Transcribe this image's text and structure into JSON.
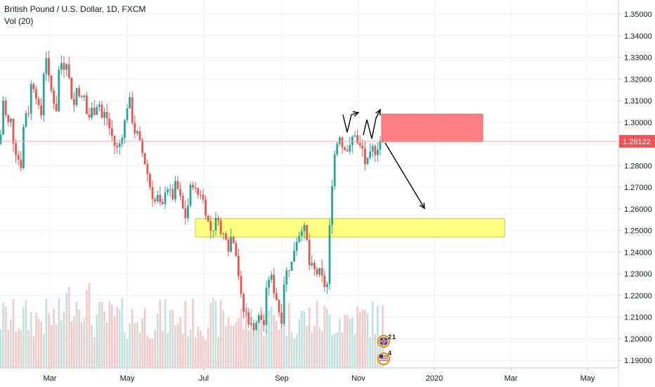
{
  "legend": {
    "symbol": "British Pound / U.S. Dollar, 1D, FXCM",
    "volume": "Vol (20)"
  },
  "colors": {
    "up": "#26a69a",
    "down": "#ef5350",
    "vol_up": "#bfe3dc",
    "vol_down": "#f6c9c8",
    "red_zone": "#ff7f83",
    "yellow_zone": "#ffff80",
    "price_line": "#f7a7a7",
    "price_badge": "#f0525a",
    "grid": "#eef0f4"
  },
  "chart_data": {
    "type": "candlestick",
    "title": "British Pound / U.S. Dollar, 1D, FXCM",
    "indicator": "Vol (20)",
    "y_ticks": [
      "1.35000",
      "1.34000",
      "1.33000",
      "1.32000",
      "1.31000",
      "1.30000",
      "1.29000",
      "1.28000",
      "1.27000",
      "1.26000",
      "1.25000",
      "1.24000",
      "1.23000",
      "1.22000",
      "1.21000",
      "1.20000",
      "1.19000"
    ],
    "ylim": [
      1.1865,
      1.3565
    ],
    "x_ticks": [
      "Mar",
      "May",
      "Jul",
      "Sep",
      "Nov",
      "2020",
      "Mar",
      "May"
    ],
    "current_price": "1.29122",
    "close_path": [
      [
        0,
        1.29
      ],
      [
        5,
        1.312
      ],
      [
        10,
        1.298
      ],
      [
        15,
        1.302
      ],
      [
        20,
        1.289
      ],
      [
        25,
        1.284
      ],
      [
        30,
        1.28
      ],
      [
        35,
        1.306
      ],
      [
        40,
        1.303
      ],
      [
        45,
        1.32
      ],
      [
        52,
        1.312
      ],
      [
        58,
        1.3
      ],
      [
        62,
        1.323
      ],
      [
        66,
        1.331
      ],
      [
        70,
        1.318
      ],
      [
        75,
        1.312
      ],
      [
        80,
        1.305
      ],
      [
        85,
        1.33
      ],
      [
        90,
        1.325
      ],
      [
        95,
        1.329
      ],
      [
        100,
        1.315
      ],
      [
        105,
        1.307
      ],
      [
        110,
        1.318
      ],
      [
        115,
        1.31
      ],
      [
        120,
        1.312
      ],
      [
        125,
        1.3
      ],
      [
        130,
        1.306
      ],
      [
        135,
        1.305
      ],
      [
        140,
        1.311
      ],
      [
        145,
        1.302
      ],
      [
        150,
        1.305
      ],
      [
        155,
        1.298
      ],
      [
        160,
        1.293
      ],
      [
        165,
        1.287
      ],
      [
        170,
        1.29
      ],
      [
        175,
        1.296
      ],
      [
        180,
        1.305
      ],
      [
        183,
        1.313
      ],
      [
        186,
        1.307
      ],
      [
        190,
        1.296
      ],
      [
        195,
        1.295
      ],
      [
        200,
        1.289
      ],
      [
        205,
        1.283
      ],
      [
        210,
        1.276
      ],
      [
        215,
        1.268
      ],
      [
        220,
        1.263
      ],
      [
        225,
        1.266
      ],
      [
        230,
        1.258
      ],
      [
        235,
        1.269
      ],
      [
        240,
        1.27
      ],
      [
        245,
        1.264
      ],
      [
        250,
        1.272
      ],
      [
        255,
        1.267
      ],
      [
        260,
        1.26
      ],
      [
        265,
        1.255
      ],
      [
        270,
        1.269
      ],
      [
        275,
        1.272
      ],
      [
        280,
        1.266
      ],
      [
        285,
        1.268
      ],
      [
        290,
        1.263
      ],
      [
        295,
        1.255
      ],
      [
        300,
        1.25
      ],
      [
        305,
        1.252
      ],
      [
        310,
        1.258
      ],
      [
        315,
        1.246
      ],
      [
        320,
        1.25
      ],
      [
        325,
        1.242
      ],
      [
        330,
        1.249
      ],
      [
        335,
        1.242
      ],
      [
        340,
        1.228
      ],
      [
        345,
        1.213
      ],
      [
        350,
        1.212
      ],
      [
        355,
        1.207
      ],
      [
        360,
        1.205
      ],
      [
        365,
        1.208
      ],
      [
        370,
        1.211
      ],
      [
        375,
        1.205
      ],
      [
        380,
        1.226
      ],
      [
        385,
        1.23
      ],
      [
        390,
        1.222
      ],
      [
        395,
        1.217
      ],
      [
        400,
        1.206
      ],
      [
        405,
        1.23
      ],
      [
        410,
        1.232
      ],
      [
        415,
        1.235
      ],
      [
        420,
        1.244
      ],
      [
        425,
        1.248
      ],
      [
        430,
        1.252
      ],
      [
        435,
        1.25
      ],
      [
        440,
        1.234
      ],
      [
        445,
        1.233
      ],
      [
        450,
        1.23
      ],
      [
        455,
        1.231
      ],
      [
        460,
        1.226
      ],
      [
        465,
        1.222
      ],
      [
        468,
        1.245
      ],
      [
        472,
        1.27
      ],
      [
        476,
        1.285
      ],
      [
        480,
        1.291
      ],
      [
        484,
        1.295
      ],
      [
        488,
        1.287
      ],
      [
        492,
        1.29
      ],
      [
        496,
        1.285
      ],
      [
        500,
        1.292
      ],
      [
        505,
        1.295
      ],
      [
        510,
        1.288
      ],
      [
        515,
        1.289
      ],
      [
        520,
        1.28
      ],
      [
        525,
        1.283
      ],
      [
        530,
        1.288
      ],
      [
        535,
        1.286
      ],
      [
        540,
        1.292
      ],
      [
        545,
        1.29
      ]
    ],
    "zones": [
      {
        "kind": "resistance",
        "price_top": 1.3038,
        "price_bottom": 1.291,
        "start": 543,
        "end": 687
      },
      {
        "kind": "support",
        "price_top": 1.2555,
        "price_bottom": 1.247,
        "start": 278,
        "end": 718
      }
    ],
    "events": [
      {
        "flag": "gb",
        "count": "2"
      },
      {
        "flag": "gb",
        "count": "1"
      },
      {
        "flag": "us",
        "count": "4"
      }
    ]
  }
}
